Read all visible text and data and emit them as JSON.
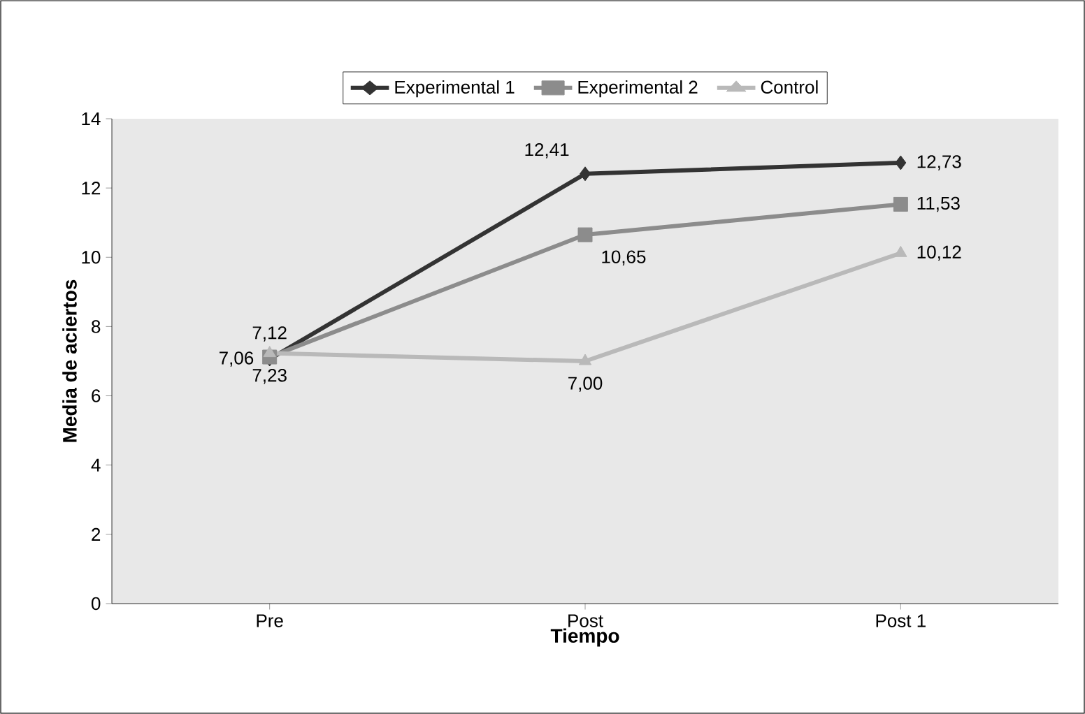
{
  "chart_data": {
    "type": "line",
    "xlabel": "Tiempo",
    "ylabel": "Media de aciertos",
    "categories": [
      "Pre",
      "Post",
      "Post 1"
    ],
    "ylim": [
      0,
      14
    ],
    "yticks": [
      0,
      2,
      4,
      6,
      8,
      10,
      12,
      14
    ],
    "legend": "top",
    "grid": false,
    "series": [
      {
        "name": "Experimental 1",
        "color": "#333333",
        "marker": "diamond",
        "values": [
          7.06,
          12.41,
          12.73
        ],
        "value_labels": [
          "7,06",
          "12,41",
          "12,73"
        ]
      },
      {
        "name": "Experimental 2",
        "color": "#8c8c8c",
        "marker": "square",
        "values": [
          7.12,
          10.65,
          11.53
        ],
        "value_labels": [
          "7,12",
          "10,65",
          "11,53"
        ]
      },
      {
        "name": "Control",
        "color": "#b9b9b9",
        "marker": "triangle",
        "values": [
          7.23,
          7.0,
          10.12
        ],
        "value_labels": [
          "7,23",
          "7,00",
          "10,12"
        ]
      }
    ]
  }
}
